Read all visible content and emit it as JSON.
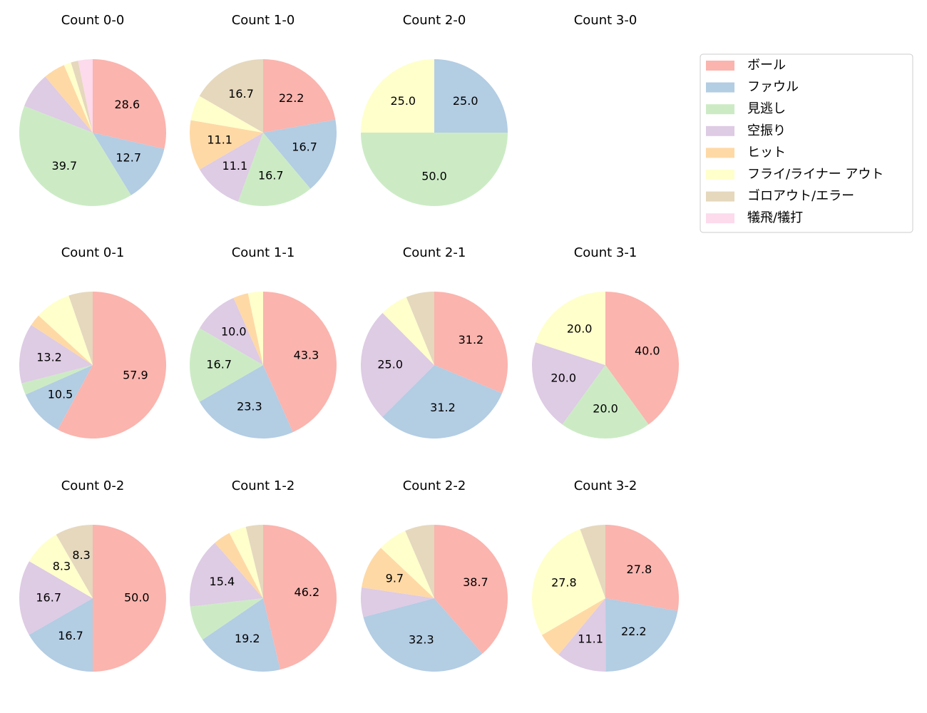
{
  "chart_data": [
    {
      "type": "pie",
      "title": "Count 0-0",
      "categories": [
        "ボール",
        "ファウル",
        "見逃し",
        "空振り",
        "ヒット",
        "フライ/ライナー アウト",
        "ゴロアウト/エラー",
        "犠飛/犠打"
      ],
      "colors": [
        "#fbb4ae",
        "#b3cde3",
        "#ccebc5",
        "#decbe4",
        "#fed9a6",
        "#ffffcc",
        "#e5d8bd",
        "#fddaec"
      ],
      "values": [
        28.6,
        12.7,
        39.7,
        7.9,
        4.8,
        1.6,
        1.6,
        3.2
      ],
      "value_labels": [
        "28.6",
        "12.7",
        "39.7",
        null,
        null,
        null,
        null,
        null
      ]
    },
    {
      "type": "pie",
      "title": "Count 1-0",
      "categories": [
        "ボール",
        "ファウル",
        "見逃し",
        "空振り",
        "ヒット",
        "フライ/ライナー アウト",
        "ゴロアウト/エラー",
        "犠飛/犠打"
      ],
      "colors": [
        "#fbb4ae",
        "#b3cde3",
        "#ccebc5",
        "#decbe4",
        "#fed9a6",
        "#ffffcc",
        "#e5d8bd",
        "#fddaec"
      ],
      "values": [
        22.2,
        16.7,
        16.7,
        11.1,
        11.1,
        5.6,
        16.7,
        0
      ],
      "value_labels": [
        "22.2",
        "16.7",
        "16.7",
        "11.1",
        "11.1",
        null,
        "16.7",
        null
      ]
    },
    {
      "type": "pie",
      "title": "Count 2-0",
      "categories": [
        "ボール",
        "ファウル",
        "見逃し",
        "空振り",
        "ヒット",
        "フライ/ライナー アウト",
        "ゴロアウト/エラー",
        "犠飛/犠打"
      ],
      "colors": [
        "#fbb4ae",
        "#b3cde3",
        "#ccebc5",
        "#decbe4",
        "#fed9a6",
        "#ffffcc",
        "#e5d8bd",
        "#fddaec"
      ],
      "values": [
        0,
        25.0,
        50.0,
        0,
        0,
        25.0,
        0,
        0
      ],
      "value_labels": [
        null,
        "25.0",
        "50.0",
        null,
        null,
        "25.0",
        null,
        null
      ]
    },
    {
      "type": "pie",
      "title": "Count 3-0",
      "categories": [
        "ボール",
        "ファウル",
        "見逃し",
        "空振り",
        "ヒット",
        "フライ/ライナー アウト",
        "ゴロアウト/エラー",
        "犠飛/犠打"
      ],
      "colors": [
        "#fbb4ae",
        "#b3cde3",
        "#ccebc5",
        "#decbe4",
        "#fed9a6",
        "#ffffcc",
        "#e5d8bd",
        "#fddaec"
      ],
      "values": [
        0,
        0,
        0,
        0,
        0,
        0,
        0,
        0
      ],
      "value_labels": [
        null,
        null,
        null,
        null,
        null,
        null,
        null,
        null
      ]
    },
    {
      "type": "pie",
      "title": "Count 0-1",
      "categories": [
        "ボール",
        "ファウル",
        "見逃し",
        "空振り",
        "ヒット",
        "フライ/ライナー アウト",
        "ゴロアウト/エラー",
        "犠飛/犠打"
      ],
      "colors": [
        "#fbb4ae",
        "#b3cde3",
        "#ccebc5",
        "#decbe4",
        "#fed9a6",
        "#ffffcc",
        "#e5d8bd",
        "#fddaec"
      ],
      "values": [
        57.9,
        10.5,
        2.6,
        13.2,
        2.6,
        7.9,
        5.3,
        0
      ],
      "value_labels": [
        "57.9",
        "10.5",
        null,
        "13.2",
        null,
        null,
        null,
        null
      ]
    },
    {
      "type": "pie",
      "title": "Count 1-1",
      "categories": [
        "ボール",
        "ファウル",
        "見逃し",
        "空振り",
        "ヒット",
        "フライ/ライナー アウト",
        "ゴロアウト/エラー",
        "犠飛/犠打"
      ],
      "colors": [
        "#fbb4ae",
        "#b3cde3",
        "#ccebc5",
        "#decbe4",
        "#fed9a6",
        "#ffffcc",
        "#e5d8bd",
        "#fddaec"
      ],
      "values": [
        43.3,
        23.3,
        16.7,
        10.0,
        3.3,
        3.3,
        0,
        0
      ],
      "value_labels": [
        "43.3",
        "23.3",
        "16.7",
        "10.0",
        null,
        null,
        null,
        null
      ]
    },
    {
      "type": "pie",
      "title": "Count 2-1",
      "categories": [
        "ボール",
        "ファウル",
        "見逃し",
        "空振り",
        "ヒット",
        "フライ/ライナー アウト",
        "ゴロアウト/エラー",
        "犠飛/犠打"
      ],
      "colors": [
        "#fbb4ae",
        "#b3cde3",
        "#ccebc5",
        "#decbe4",
        "#fed9a6",
        "#ffffcc",
        "#e5d8bd",
        "#fddaec"
      ],
      "values": [
        31.2,
        31.2,
        0,
        25.0,
        0,
        6.2,
        6.2,
        0
      ],
      "value_labels": [
        "31.2",
        "31.2",
        null,
        "25.0",
        null,
        null,
        null,
        null
      ]
    },
    {
      "type": "pie",
      "title": "Count 3-1",
      "categories": [
        "ボール",
        "ファウル",
        "見逃し",
        "空振り",
        "ヒット",
        "フライ/ライナー アウト",
        "ゴロアウト/エラー",
        "犠飛/犠打"
      ],
      "colors": [
        "#fbb4ae",
        "#b3cde3",
        "#ccebc5",
        "#decbe4",
        "#fed9a6",
        "#ffffcc",
        "#e5d8bd",
        "#fddaec"
      ],
      "values": [
        40.0,
        0,
        20.0,
        20.0,
        0,
        20.0,
        0,
        0
      ],
      "value_labels": [
        "40.0",
        null,
        "20.0",
        "20.0",
        null,
        "20.0",
        null,
        null
      ]
    },
    {
      "type": "pie",
      "title": "Count 0-2",
      "categories": [
        "ボール",
        "ファウル",
        "見逃し",
        "空振り",
        "ヒット",
        "フライ/ライナー アウト",
        "ゴロアウト/エラー",
        "犠飛/犠打"
      ],
      "colors": [
        "#fbb4ae",
        "#b3cde3",
        "#ccebc5",
        "#decbe4",
        "#fed9a6",
        "#ffffcc",
        "#e5d8bd",
        "#fddaec"
      ],
      "values": [
        50.0,
        16.7,
        0,
        16.7,
        0,
        8.3,
        8.3,
        0
      ],
      "value_labels": [
        "50.0",
        "16.7",
        null,
        "16.7",
        null,
        "8.3",
        "8.3",
        null
      ]
    },
    {
      "type": "pie",
      "title": "Count 1-2",
      "categories": [
        "ボール",
        "ファウル",
        "見逃し",
        "空振り",
        "ヒット",
        "フライ/ライナー アウト",
        "ゴロアウト/エラー",
        "犠飛/犠打"
      ],
      "colors": [
        "#fbb4ae",
        "#b3cde3",
        "#ccebc5",
        "#decbe4",
        "#fed9a6",
        "#ffffcc",
        "#e5d8bd",
        "#fddaec"
      ],
      "values": [
        46.2,
        19.2,
        7.7,
        15.4,
        3.8,
        3.8,
        3.8,
        0
      ],
      "value_labels": [
        "46.2",
        "19.2",
        null,
        "15.4",
        null,
        null,
        null,
        null
      ]
    },
    {
      "type": "pie",
      "title": "Count 2-2",
      "categories": [
        "ボール",
        "ファウル",
        "見逃し",
        "空振り",
        "ヒット",
        "フライ/ライナー アウト",
        "ゴロアウト/エラー",
        "犠飛/犠打"
      ],
      "colors": [
        "#fbb4ae",
        "#b3cde3",
        "#ccebc5",
        "#decbe4",
        "#fed9a6",
        "#ffffcc",
        "#e5d8bd",
        "#fddaec"
      ],
      "values": [
        38.7,
        32.3,
        0,
        6.5,
        9.7,
        6.5,
        6.5,
        0
      ],
      "value_labels": [
        "38.7",
        "32.3",
        null,
        null,
        "9.7",
        null,
        null,
        null
      ]
    },
    {
      "type": "pie",
      "title": "Count 3-2",
      "categories": [
        "ボール",
        "ファウル",
        "見逃し",
        "空振り",
        "ヒット",
        "フライ/ライナー アウト",
        "ゴロアウト/エラー",
        "犠飛/犠打"
      ],
      "colors": [
        "#fbb4ae",
        "#b3cde3",
        "#ccebc5",
        "#decbe4",
        "#fed9a6",
        "#ffffcc",
        "#e5d8bd",
        "#fddaec"
      ],
      "values": [
        27.8,
        22.2,
        0,
        11.1,
        5.6,
        27.8,
        5.6,
        0
      ],
      "value_labels": [
        "27.8",
        "22.2",
        null,
        "11.1",
        null,
        "27.8",
        null,
        null
      ]
    }
  ]
}
